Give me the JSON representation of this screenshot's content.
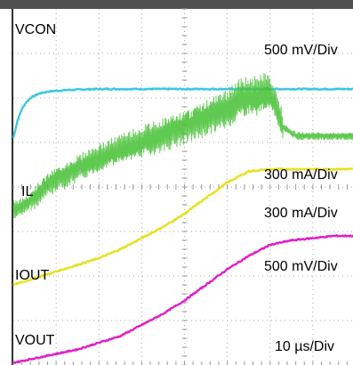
{
  "chart_data": {
    "type": "line",
    "title": "",
    "xlabel": "",
    "ylabel": "",
    "grid": true,
    "x_scale_label": "10 µs/Div",
    "xlim": [
      0,
      80
    ],
    "channels": [
      {
        "name": "VCON",
        "scale_label": "500 mV/Div",
        "color": "#3cc8dc",
        "x": [
          0,
          1,
          2,
          3,
          4,
          5,
          6,
          8,
          10,
          13,
          16,
          20,
          30,
          40,
          60,
          80
        ],
        "y": [
          1.1,
          1.5,
          1.75,
          1.9,
          2.0,
          2.05,
          2.1,
          2.14,
          2.16,
          2.18,
          2.19,
          2.2,
          2.2,
          2.2,
          2.2,
          2.2
        ]
      },
      {
        "name": "IL",
        "scale_label": "300 mA/Div",
        "color": "#44c033",
        "x": [
          0,
          2,
          5,
          8,
          12,
          18,
          25,
          33,
          40,
          45,
          50,
          53,
          55,
          57,
          59,
          61,
          63,
          66,
          70,
          75,
          80
        ],
        "y": [
          -0.5,
          -0.45,
          -0.2,
          0.1,
          0.3,
          0.55,
          0.8,
          1.1,
          1.4,
          1.6,
          1.75,
          1.95,
          2.0,
          1.95,
          2.1,
          1.9,
          1.35,
          1.15,
          1.15,
          1.15,
          1.15
        ]
      },
      {
        "name": "IOUT",
        "scale_label": "300 mA/Div",
        "color": "#e8e020",
        "x": [
          0,
          5,
          10,
          15,
          20,
          25,
          30,
          35,
          40,
          45,
          50,
          55,
          60,
          65,
          70,
          75,
          80
        ],
        "y": [
          -2.2,
          -2.05,
          -1.9,
          -1.75,
          -1.6,
          -1.4,
          -1.15,
          -0.9,
          -0.6,
          -0.25,
          0.1,
          0.35,
          0.4,
          0.4,
          0.4,
          0.4,
          0.4
        ]
      },
      {
        "name": "VOUT",
        "scale_label": "500 mV/Div",
        "color": "#e020c8",
        "x": [
          0,
          5,
          10,
          15,
          20,
          25,
          30,
          35,
          40,
          45,
          50,
          55,
          60,
          65,
          70,
          75,
          80
        ],
        "y": [
          -3.95,
          -3.85,
          -3.75,
          -3.65,
          -3.5,
          -3.35,
          -3.1,
          -2.85,
          -2.55,
          -2.2,
          -1.85,
          -1.55,
          -1.3,
          -1.2,
          -1.15,
          -1.1,
          -1.1
        ]
      }
    ]
  }
}
